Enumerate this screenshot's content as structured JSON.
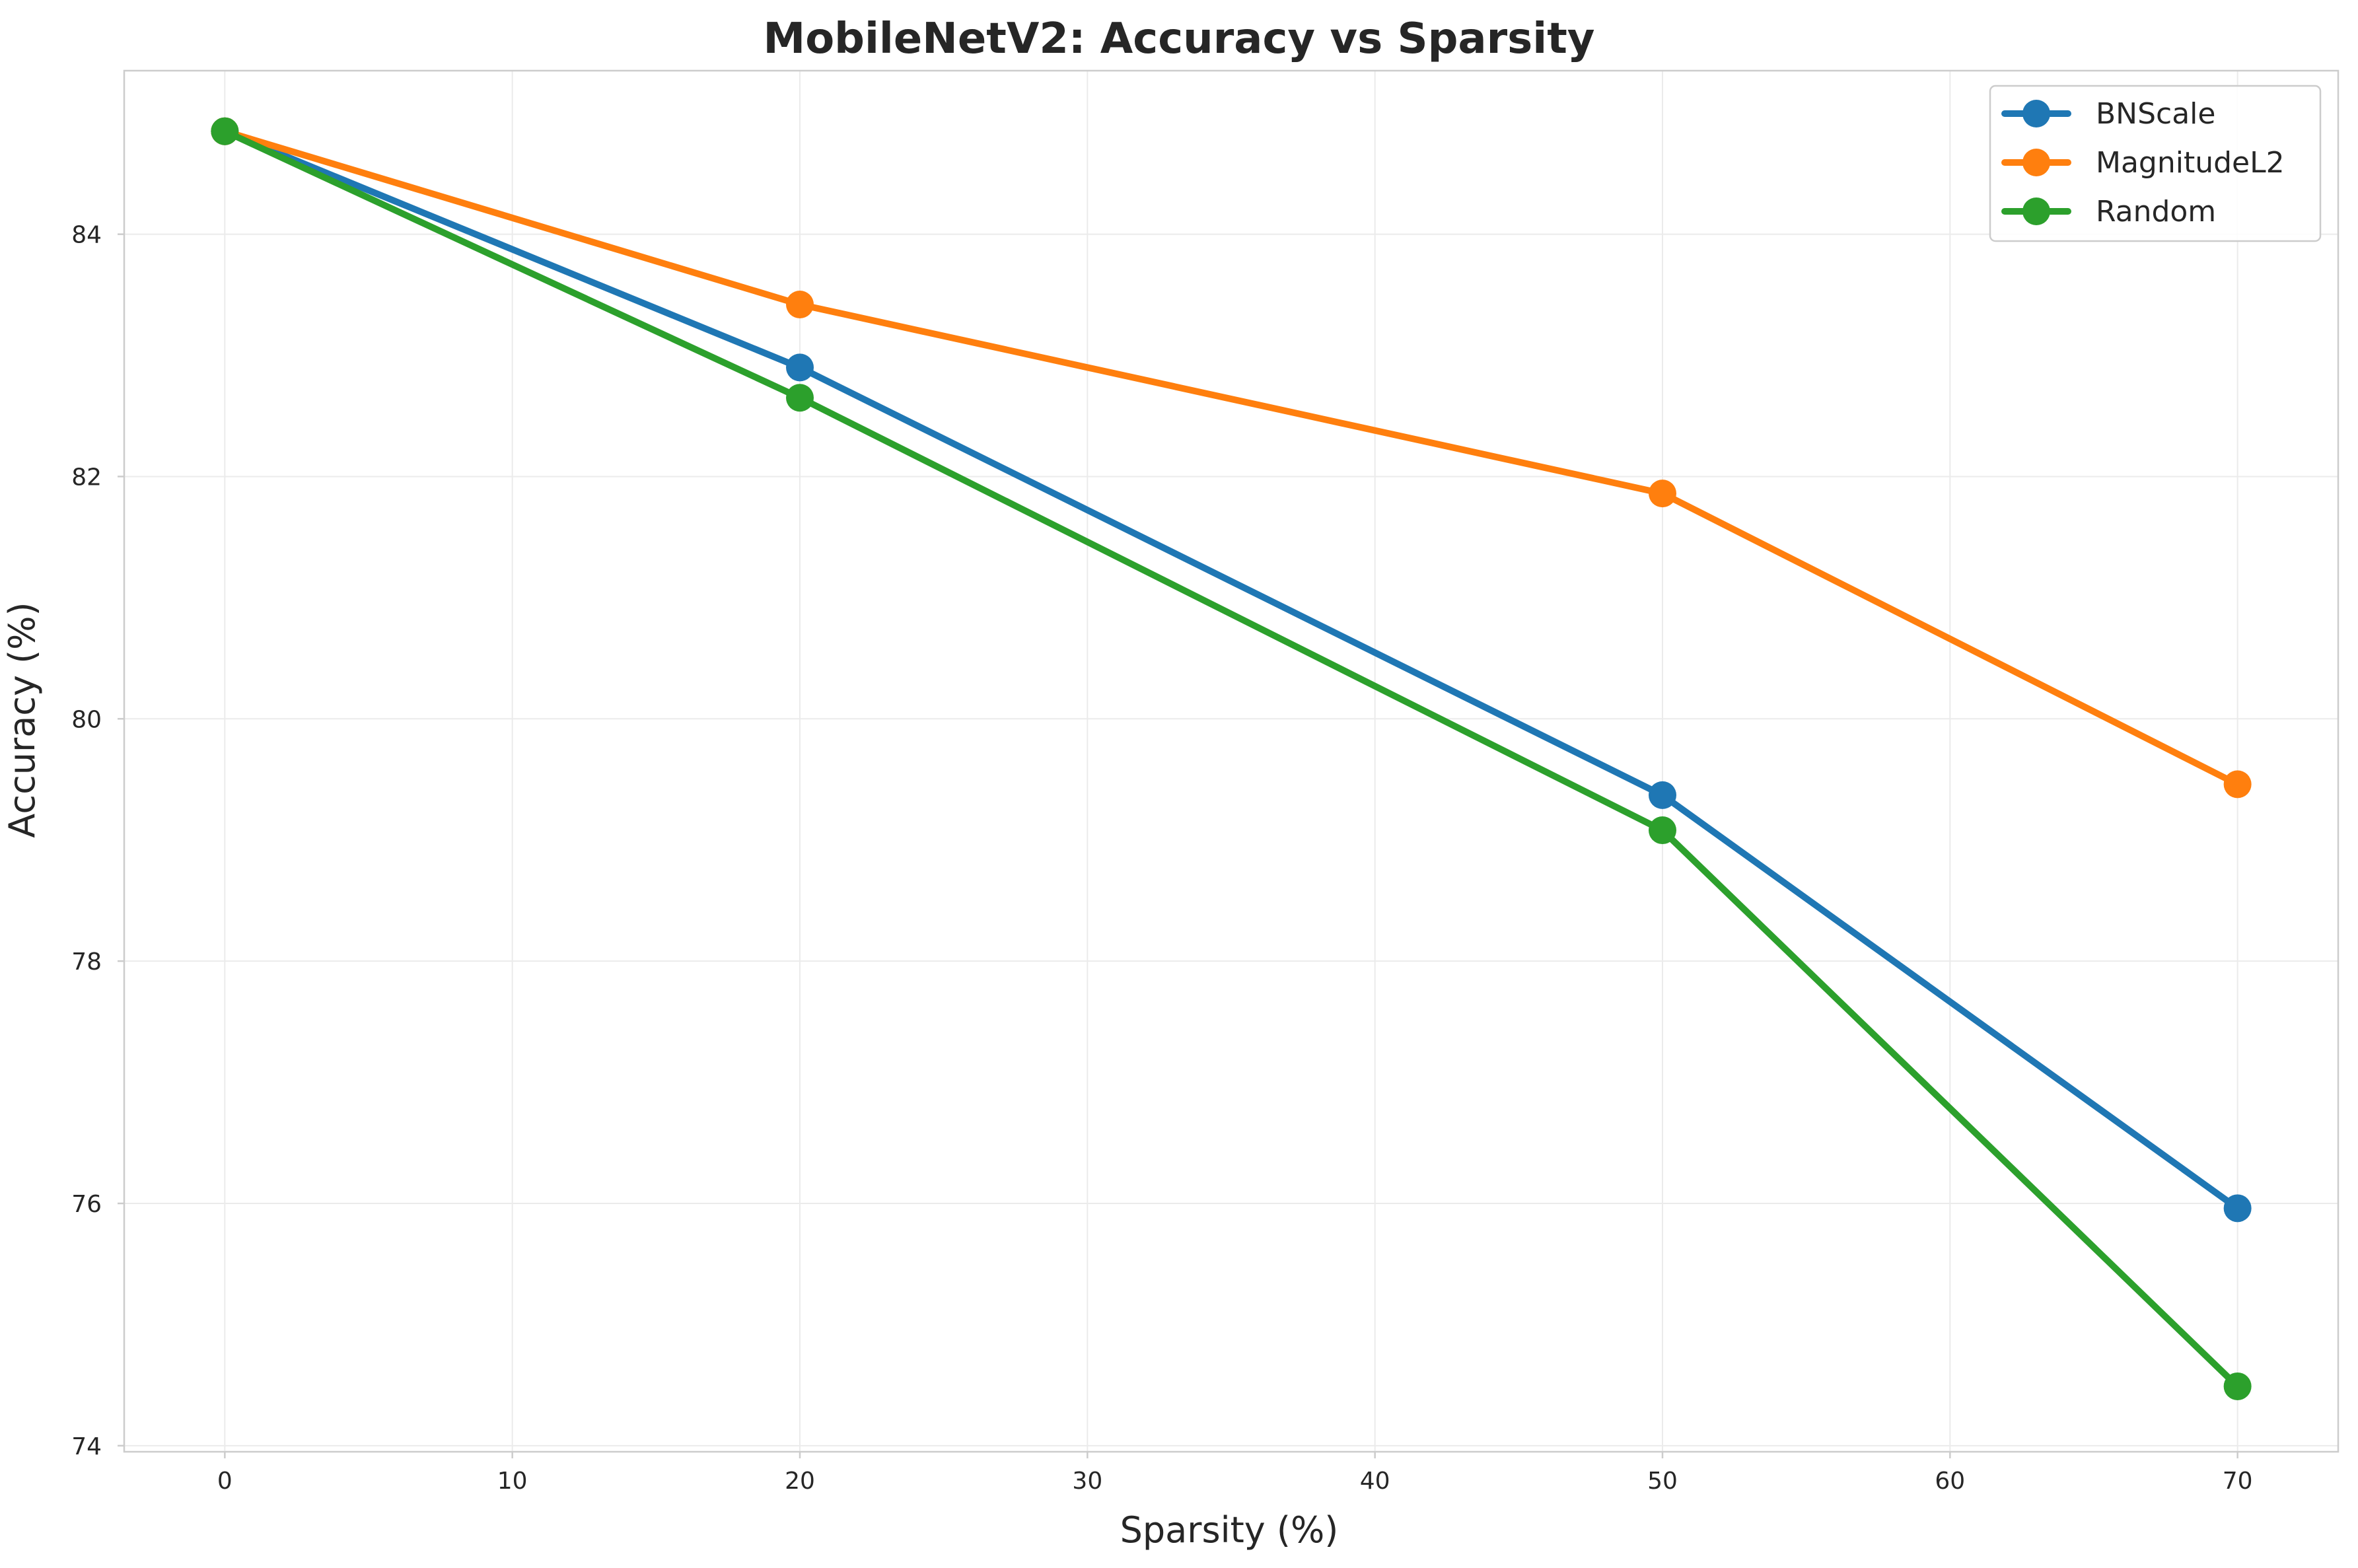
{
  "chart_data": {
    "type": "line",
    "title": "MobileNetV2: Accuracy vs Sparsity",
    "xlabel": "Sparsity (%)",
    "ylabel": "Accuracy (%)",
    "x": [
      0,
      20,
      50,
      70
    ],
    "xlim": [
      -3.5,
      73.5
    ],
    "ylim": [
      73.95,
      85.35
    ],
    "xticks": [
      0,
      10,
      20,
      30,
      40,
      50,
      60,
      70
    ],
    "yticks": [
      74,
      76,
      78,
      80,
      82,
      84
    ],
    "grid": true,
    "legend_position": "top-right",
    "series": [
      {
        "name": "BNScale",
        "color": "#1f77b4",
        "values": [
          84.85,
          82.9,
          79.37,
          75.96
        ]
      },
      {
        "name": "MagnitudeL2",
        "color": "#ff7f0e",
        "values": [
          84.85,
          83.42,
          81.86,
          79.46
        ]
      },
      {
        "name": "Random",
        "color": "#2ca02c",
        "values": [
          84.85,
          82.65,
          79.08,
          74.49
        ]
      }
    ]
  }
}
